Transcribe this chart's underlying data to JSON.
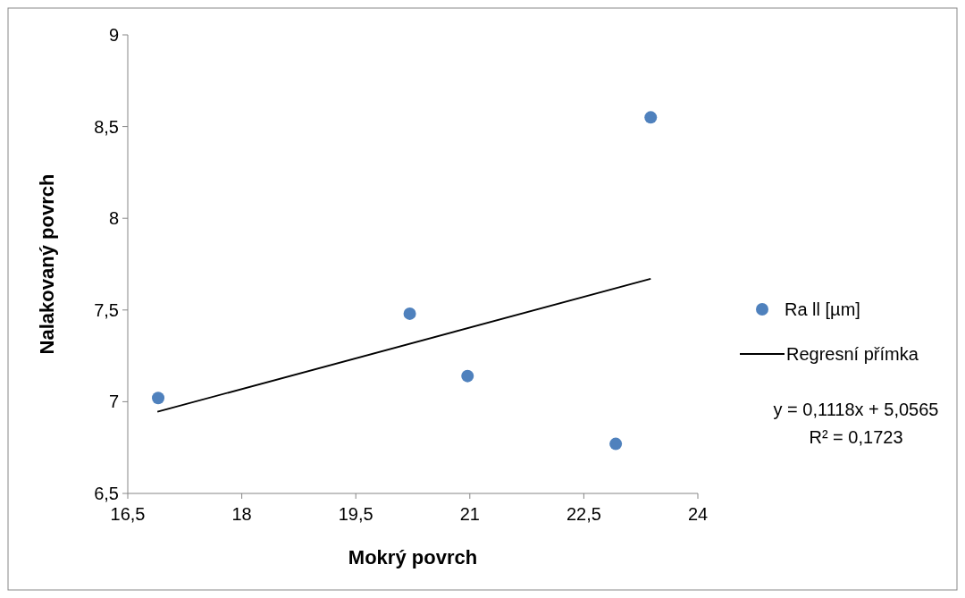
{
  "chart_data": {
    "type": "scatter",
    "xlabel": "Mokrý povrch",
    "ylabel": "Nalakovaný povrch",
    "xlim": [
      16.5,
      24
    ],
    "xticks": [
      {
        "value": 16.5,
        "label": "16,5"
      },
      18,
      {
        "value": 19.5,
        "label": "19,5"
      },
      21,
      {
        "value": 22.5,
        "label": "22,5"
      },
      24
    ],
    "ylim": [
      6.5,
      9
    ],
    "yticks": [
      {
        "value": 6.5,
        "label": "6,5"
      },
      7,
      {
        "value": 7.5,
        "label": "7,5"
      },
      8,
      {
        "value": 8.5,
        "label": "8,5"
      },
      9
    ],
    "series": [
      {
        "name": "Ra ll [µm]",
        "color": "#4f81bd",
        "marker": "circle",
        "x": [
          16.9,
          20.21,
          20.97,
          22.92,
          23.38
        ],
        "values": [
          7.02,
          7.48,
          7.14,
          6.77,
          8.55
        ]
      },
      {
        "name": "Regresní přímka",
        "type": "line",
        "color": "#000000",
        "marker": "none",
        "line_style": "solid",
        "x": [
          16.89,
          23.38
        ],
        "values": [
          6.945,
          7.67
        ]
      }
    ],
    "annotations": [
      "y = 0,1118x + 5,0565",
      "R² = 0,1723"
    ],
    "legend": "right",
    "grid": false
  }
}
